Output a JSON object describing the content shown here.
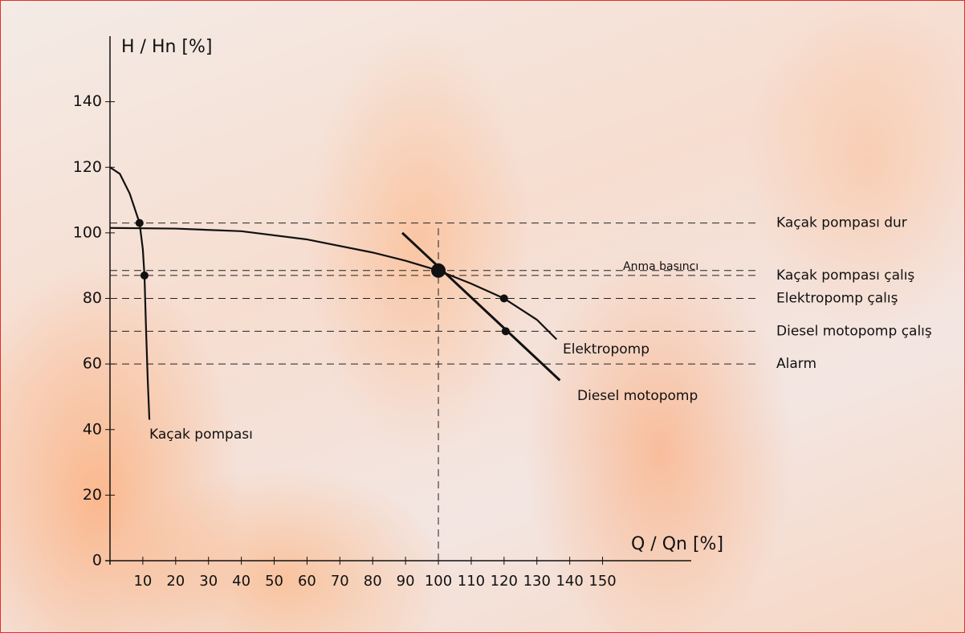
{
  "chart_data": {
    "type": "line",
    "y_label": "H / Hn [%]",
    "x_label": "Q / Qn [%]",
    "xlim": [
      0,
      177
    ],
    "ylim": [
      0,
      160
    ],
    "xticks": [
      10,
      20,
      30,
      40,
      50,
      60,
      70,
      80,
      90,
      100,
      110,
      120,
      130,
      140,
      150
    ],
    "yticks": [
      0,
      20,
      40,
      60,
      80,
      100,
      120,
      140
    ],
    "series": [
      {
        "name": "Kaçak pompası",
        "color": "#111111",
        "x": [
          0,
          3,
          6,
          8,
          9,
          10,
          10.5,
          11,
          11.5,
          12
        ],
        "y": [
          120,
          118,
          112,
          106,
          103,
          95,
          87,
          70,
          55,
          43
        ],
        "points": {
          "x": [
            9,
            10.5
          ],
          "y": [
            103,
            87
          ]
        }
      },
      {
        "name": "Elektropomp",
        "color": "#111111",
        "x": [
          0,
          20,
          40,
          60,
          80,
          90,
          100,
          110,
          120,
          130,
          136
        ],
        "y": [
          101.5,
          101.3,
          100.5,
          98,
          94,
          91.5,
          88.5,
          84.5,
          80,
          73.5,
          67.5
        ],
        "points": {
          "x": [
            120
          ],
          "y": [
            80
          ]
        }
      },
      {
        "name": "Diesel motopomp",
        "color": "#111111",
        "x": [
          89,
          137
        ],
        "y": [
          100,
          55
        ],
        "points": {
          "x": [
            120.5
          ],
          "y": [
            70
          ]
        }
      }
    ],
    "rated_point": {
      "x": 100,
      "y": 88.5,
      "label": "Anma basıncı"
    },
    "reference_lines": [
      {
        "value": 103,
        "label": "Kaçak pompası dur"
      },
      {
        "value": 87,
        "label": "Kaçak pompası çalış"
      },
      {
        "value": 80,
        "label": "Elektropomp çalış"
      },
      {
        "value": 70,
        "label": "Diesel motopomp çalış"
      },
      {
        "value": 60,
        "label": "Alarm"
      }
    ]
  }
}
